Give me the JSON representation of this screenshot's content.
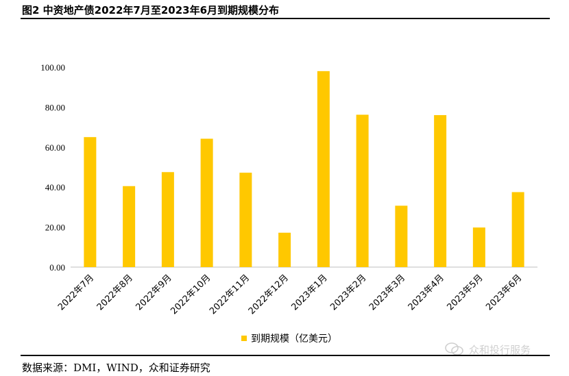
{
  "figure": {
    "title": "图2 中资地产债2022年7月至2023年6月到期规模分布",
    "source": "数据来源：DMI，WIND，众和证券研究",
    "watermark": "众和投行服务"
  },
  "chart_data": {
    "type": "bar",
    "categories": [
      "2022年7月",
      "2022年8月",
      "2022年9月",
      "2022年10月",
      "2022年11月",
      "2022年12月",
      "2023年1月",
      "2023年2月",
      "2023年3月",
      "2023年4月",
      "2023年5月",
      "2023年6月"
    ],
    "series": [
      {
        "name": "到期规模（亿美元）",
        "values": [
          65,
          40.5,
          47.5,
          64.2,
          47.2,
          17.2,
          98,
          76.2,
          30.7,
          76,
          19.8,
          37.5
        ]
      }
    ],
    "yticks": [
      "0.00",
      "20.00",
      "40.00",
      "60.00",
      "80.00",
      "100.00"
    ],
    "ylim": [
      0,
      100
    ],
    "grid": false,
    "legend_position": "bottom",
    "colors": {
      "bar": "#FFC800",
      "axis": "#BFBFBF"
    }
  }
}
